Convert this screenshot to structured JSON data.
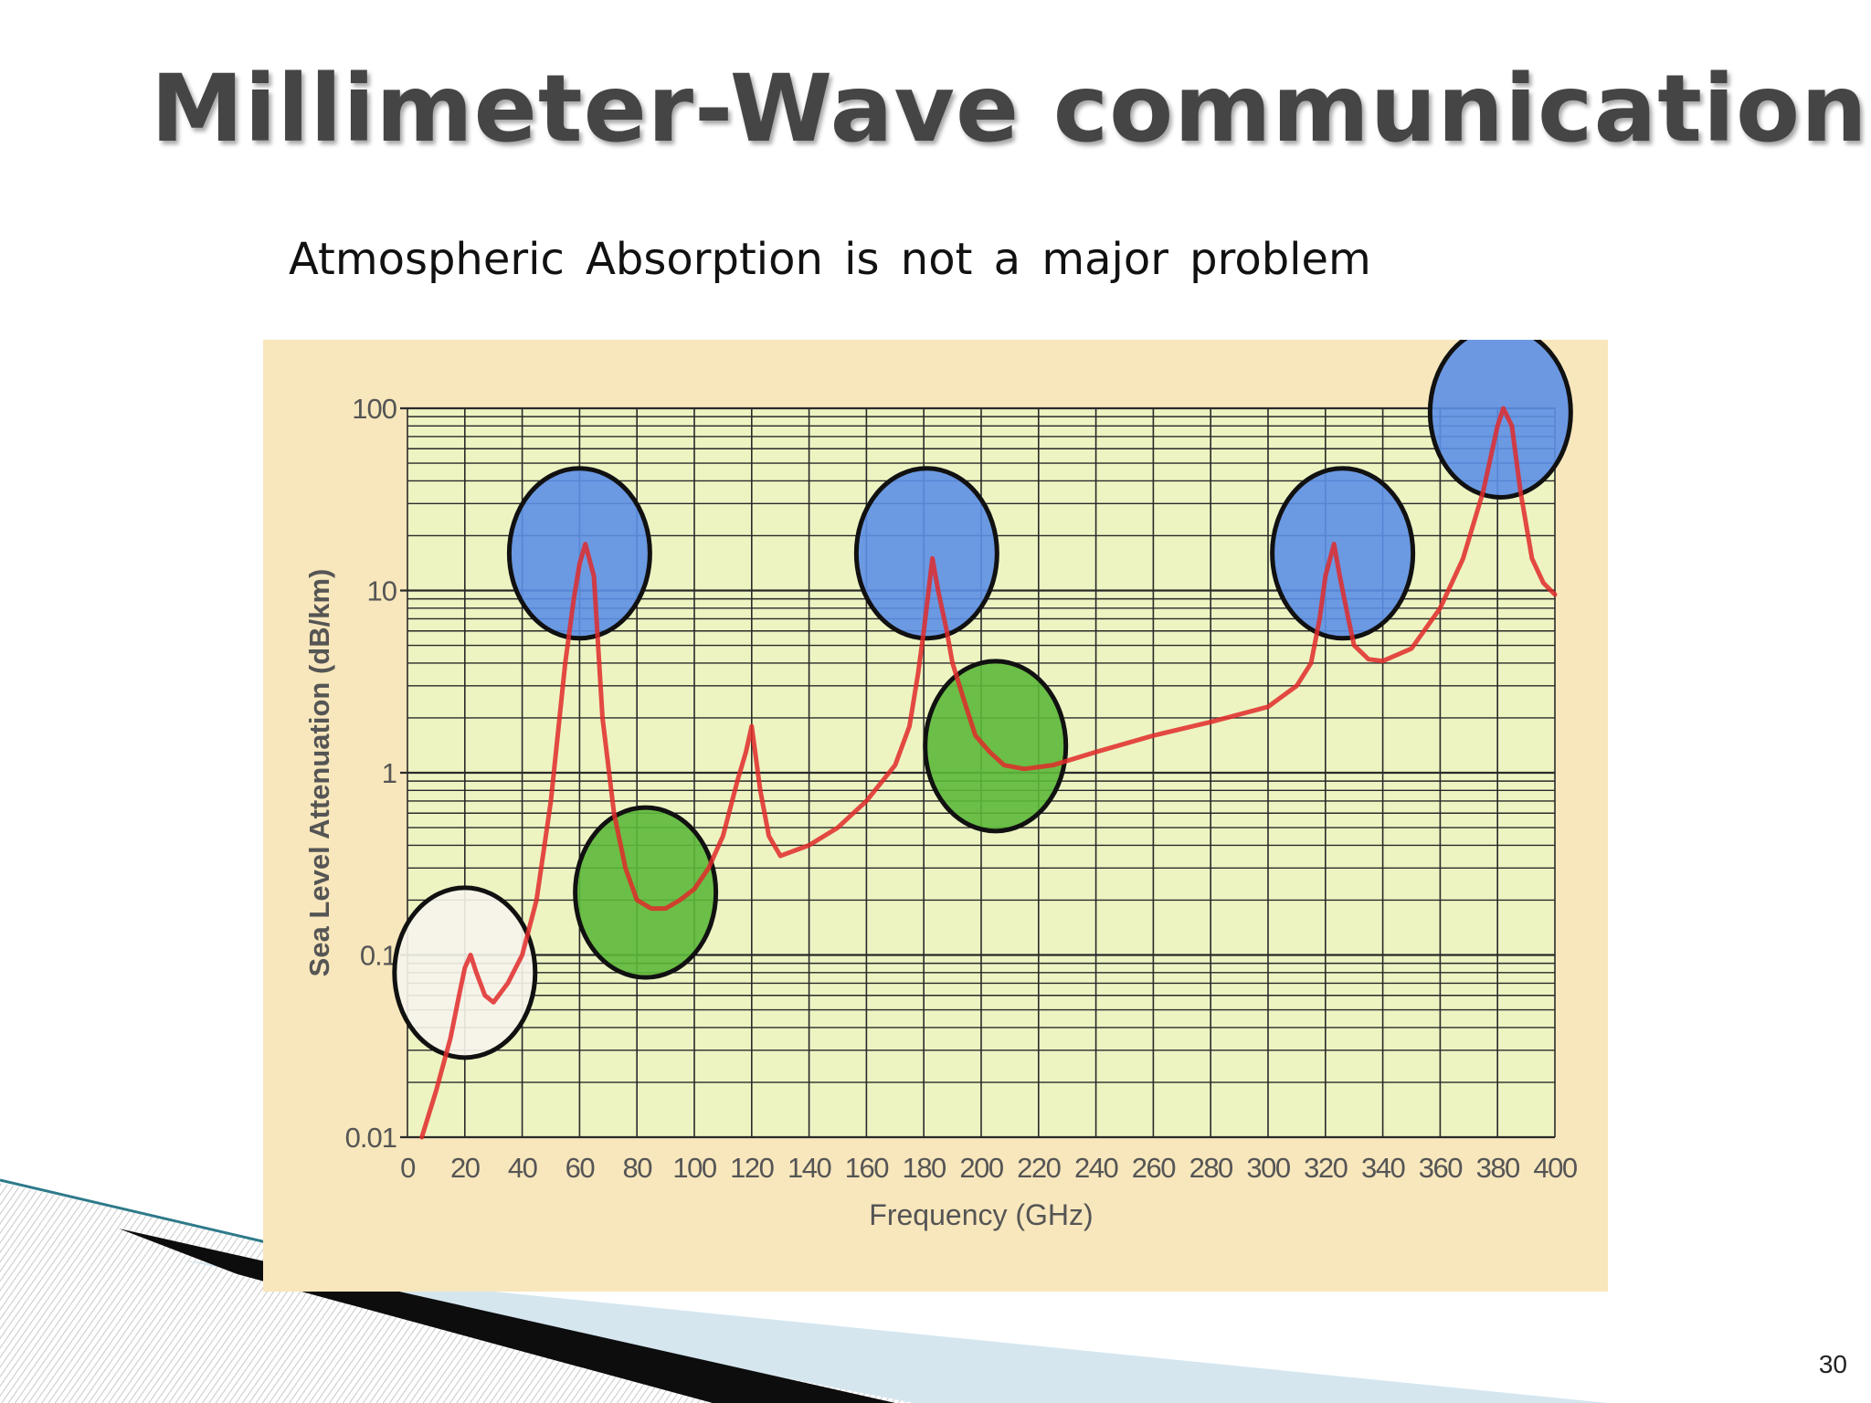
{
  "slide": {
    "title": "Millimeter-Wave  communication",
    "subtitle": "Atmospheric  Absorption  is  not  a  major  problem",
    "page_number": "30"
  },
  "chart_data": {
    "type": "line",
    "xlabel": "Frequency (GHz)",
    "ylabel": "Sea Level Attenuation (dB/km)",
    "xlim": [
      0,
      400
    ],
    "ylim": [
      0.01,
      100
    ],
    "y_scale": "log",
    "grid": true,
    "x_ticks": [
      "0",
      "20",
      "40",
      "60",
      "80",
      "100",
      "120",
      "140",
      "160",
      "180",
      "200",
      "220",
      "240",
      "260",
      "280",
      "300",
      "320",
      "340",
      "360",
      "380",
      "400"
    ],
    "y_ticks": [
      {
        "value": 0.01,
        "label": "0.01"
      },
      {
        "value": 0.1,
        "label": "0.1"
      },
      {
        "value": 1,
        "label": "1"
      },
      {
        "value": 10,
        "label": "10"
      },
      {
        "value": 100,
        "label": "100"
      }
    ],
    "x": [
      5,
      10,
      15,
      18,
      20,
      22,
      24,
      27,
      30,
      35,
      40,
      45,
      50,
      55,
      58,
      60,
      62,
      65,
      68,
      72,
      76,
      80,
      85,
      90,
      95,
      100,
      105,
      110,
      115,
      118,
      120,
      123,
      126,
      130,
      140,
      150,
      160,
      170,
      175,
      178,
      180,
      183,
      185,
      188,
      190,
      194,
      198,
      203,
      208,
      215,
      225,
      240,
      260,
      280,
      300,
      310,
      315,
      318,
      320,
      323,
      325,
      328,
      330,
      335,
      340,
      350,
      360,
      368,
      375,
      380,
      382,
      385,
      388,
      392,
      396,
      400
    ],
    "y": [
      0.01,
      0.018,
      0.035,
      0.06,
      0.085,
      0.1,
      0.08,
      0.06,
      0.055,
      0.07,
      0.1,
      0.2,
      0.7,
      4,
      9,
      14,
      18,
      12,
      2,
      0.6,
      0.3,
      0.2,
      0.18,
      0.18,
      0.2,
      0.23,
      0.3,
      0.45,
      0.9,
      1.3,
      1.8,
      0.8,
      0.45,
      0.35,
      0.4,
      0.5,
      0.7,
      1.1,
      1.8,
      3.5,
      6,
      15,
      10,
      6,
      4,
      2.5,
      1.6,
      1.3,
      1.1,
      1.05,
      1.1,
      1.3,
      1.6,
      1.9,
      2.3,
      3,
      4,
      7,
      12,
      18,
      12,
      7,
      5,
      4.2,
      4.1,
      4.8,
      8,
      15,
      35,
      80,
      100,
      80,
      35,
      15,
      11,
      9.5
    ],
    "series_color": "#e02a2a",
    "highlights": [
      {
        "x": 20,
        "y": 0.08,
        "color": "#f6f4ec"
      },
      {
        "x": 60,
        "y": 16,
        "color": "#5c8fe6"
      },
      {
        "x": 83,
        "y": 0.22,
        "color": "#5cb83a"
      },
      {
        "x": 181,
        "y": 16,
        "color": "#5c8fe6"
      },
      {
        "x": 205,
        "y": 1.4,
        "color": "#5cb83a"
      },
      {
        "x": 326,
        "y": 16,
        "color": "#5c8fe6"
      },
      {
        "x": 381,
        "y": 95,
        "color": "#5c8fe6"
      }
    ],
    "colors": {
      "panel_bg": "#f8e7bc",
      "plot_bg": "#edf4c2",
      "grid": "#2a2a2a",
      "axis_text": "#555555"
    }
  }
}
